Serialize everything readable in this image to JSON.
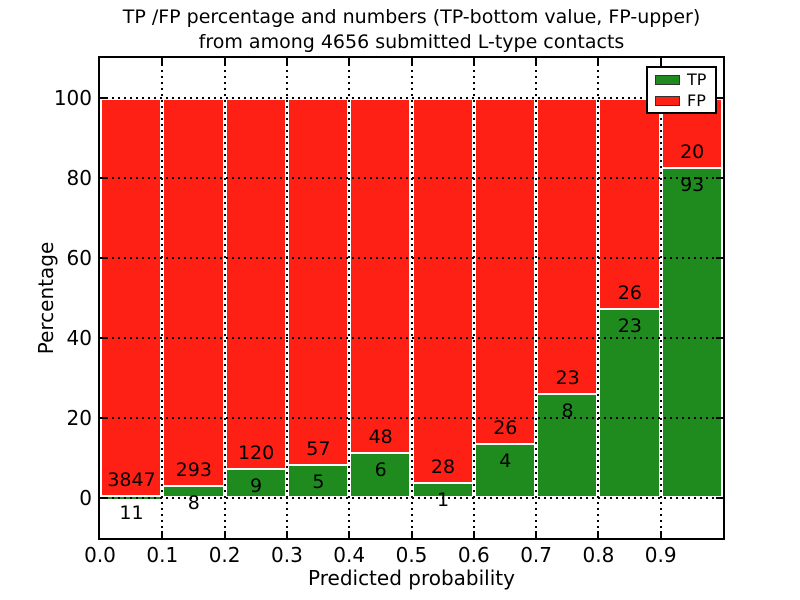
{
  "title": {
    "line1": "TP /FP percentage and numbers (TP-bottom value, FP-upper)",
    "line2": "from among 4656 submitted L-type contacts"
  },
  "axes": {
    "xlabel": "Predicted probability",
    "ylabel": "Percentage",
    "xticks": [
      "0.0",
      "0.1",
      "0.2",
      "0.3",
      "0.4",
      "0.5",
      "0.6",
      "0.7",
      "0.8",
      "0.9"
    ],
    "yticks": [
      "0",
      "20",
      "40",
      "60",
      "80",
      "100"
    ]
  },
  "legend": {
    "items": [
      {
        "label": "TP",
        "color": "#1f8b1f"
      },
      {
        "label": "FP",
        "color": "#ff2015"
      }
    ]
  },
  "colors": {
    "tp": "#1f8b1f",
    "fp": "#ff2015",
    "bar_edge": "#ffffff",
    "grid": "#000000",
    "background": "#ffffff",
    "text": "#000000"
  },
  "chart_data": {
    "type": "bar",
    "stacked": true,
    "percent_normalized": true,
    "title": "TP /FP percentage and numbers (TP-bottom value, FP-upper) from among 4656 submitted L-type contacts",
    "xlabel": "Predicted probability",
    "ylabel": "Percentage",
    "xlim": [
      0.0,
      1.0
    ],
    "ylim": [
      -10,
      110
    ],
    "bin_edges": [
      0.0,
      0.1,
      0.2,
      0.3,
      0.4,
      0.5,
      0.6,
      0.7,
      0.8,
      0.9,
      1.0
    ],
    "grid": true,
    "legend_position": "upper right",
    "series": [
      {
        "name": "TP",
        "color": "#1f8b1f",
        "counts": [
          11,
          8,
          9,
          5,
          6,
          1,
          4,
          8,
          23,
          93
        ]
      },
      {
        "name": "FP",
        "color": "#ff2015",
        "counts": [
          3847,
          293,
          120,
          57,
          48,
          28,
          26,
          23,
          26,
          20
        ]
      }
    ],
    "tp_percent": [
      0.29,
      2.66,
      6.98,
      8.06,
      11.11,
      3.45,
      13.33,
      25.81,
      46.94,
      82.3
    ],
    "total_contacts": 4656
  }
}
